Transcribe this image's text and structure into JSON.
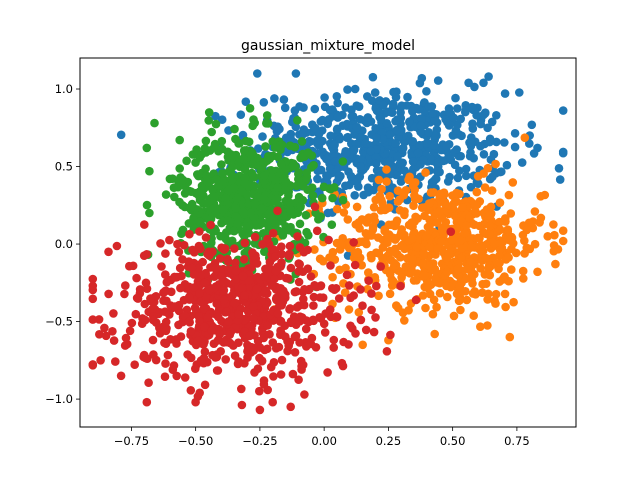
{
  "chart_data": {
    "type": "scatter",
    "title": "gaussian_mixture_model",
    "xlabel": "",
    "ylabel": "",
    "xlim": [
      -0.95,
      0.98
    ],
    "ylim": [
      -1.18,
      1.2
    ],
    "x_ticks": [
      -0.75,
      -0.5,
      -0.25,
      0.0,
      0.25,
      0.5,
      0.75
    ],
    "x_tick_labels": [
      "−0.75",
      "−0.50",
      "−0.25",
      "0.00",
      "0.25",
      "0.50",
      "0.75"
    ],
    "y_ticks": [
      -1.0,
      -0.5,
      0.0,
      0.5,
      1.0
    ],
    "y_tick_labels": [
      "−1.0",
      "−0.5",
      "0.0",
      "0.5",
      "1.0"
    ],
    "grid": false,
    "legend": "none",
    "colors": [
      "#1f77b4",
      "#ff7f0e",
      "#2ca02c",
      "#d62728"
    ],
    "clusters": [
      {
        "color": "#1f77b4",
        "center": [
          0.22,
          0.62
        ],
        "spread": [
          0.25,
          0.18
        ],
        "count": 650,
        "outliers": [
          [
            -0.26,
            1.1
          ],
          [
            -0.11,
            1.1
          ],
          [
            0.38,
            1.07
          ],
          [
            0.64,
            1.08
          ],
          [
            0.62,
            1.04
          ],
          [
            0.83,
            0.62
          ],
          [
            0.8,
            0.7
          ]
        ]
      },
      {
        "color": "#ff7f0e",
        "center": [
          0.45,
          0.0
        ],
        "spread": [
          0.2,
          0.2
        ],
        "count": 650,
        "outliers": [
          [
            0.87,
            0.05
          ],
          [
            0.82,
            0.21
          ],
          [
            0.43,
            -0.58
          ],
          [
            0.25,
            -0.62
          ],
          [
            0.15,
            -0.65
          ]
        ]
      },
      {
        "color": "#2ca02c",
        "center": [
          -0.3,
          0.3
        ],
        "spread": [
          0.13,
          0.2
        ],
        "count": 650,
        "outliers": [
          [
            -0.66,
            0.78
          ],
          [
            -0.69,
            0.62
          ],
          [
            -0.68,
            0.47
          ],
          [
            -0.68,
            0.2
          ],
          [
            -0.6,
            0.42
          ]
        ]
      },
      {
        "color": "#d62728",
        "center": [
          -0.34,
          -0.4
        ],
        "spread": [
          0.23,
          0.22
        ],
        "count": 700,
        "outliers": [
          [
            -0.9,
            -0.27
          ],
          [
            -0.87,
            -0.75
          ],
          [
            -0.79,
            -0.85
          ],
          [
            -0.69,
            -1.02
          ],
          [
            -0.5,
            -1.02
          ],
          [
            -0.25,
            -1.07
          ],
          [
            -0.2,
            -1.02
          ],
          [
            -0.13,
            -1.05
          ]
        ]
      }
    ]
  }
}
